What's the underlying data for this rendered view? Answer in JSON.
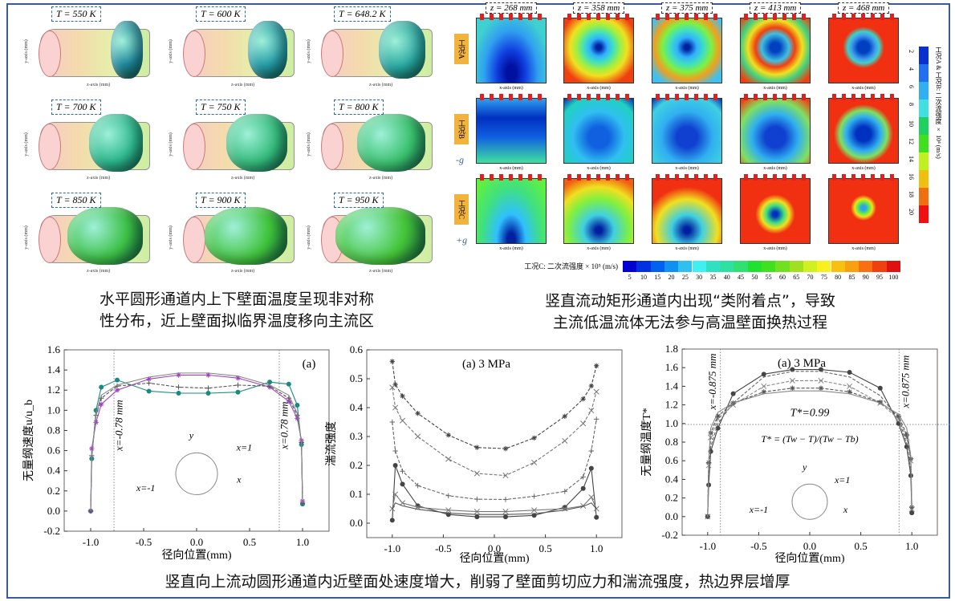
{
  "top_left": {
    "panels": [
      {
        "label": "T = 550 K",
        "blob_color": "#1f8a9e"
      },
      {
        "label": "T = 600 K",
        "blob_color": "#249aa6"
      },
      {
        "label": "T = 648.2 K",
        "blob_color": "#28a6a0"
      },
      {
        "label": "T = 700 K",
        "blob_color": "#2cb88c"
      },
      {
        "label": "T = 750 K",
        "blob_color": "#33ba7a"
      },
      {
        "label": "T = 800 K",
        "blob_color": "#38bf6c"
      },
      {
        "label": "T = 850 K",
        "blob_color": "#3cbf44"
      },
      {
        "label": "T = 900 K",
        "blob_color": "#40c23a"
      },
      {
        "label": "T = 950 K",
        "blob_color": "#44c436"
      }
    ],
    "axis_y": "y-axis (mm)",
    "axis_x": "x-axis (mm)",
    "axis_z": "z-axis (mm)",
    "caption_lines": [
      "水平圆形通道内上下壁面温度呈现非对称",
      "性分布，近上壁面拟临界温度移向主流区"
    ]
  },
  "top_right": {
    "z_labels": [
      "z = 268 mm",
      "z = 358 mm",
      "z = 375 mm",
      "z = 413 mm",
      "z = 468 mm"
    ],
    "cases": [
      "工况A",
      "工况B",
      "工况C"
    ],
    "g_signs": [
      "-g",
      "+g"
    ],
    "cell_xlabel": "x-axis (mm)",
    "cell_ylabel": "y-axis (mm)",
    "colorbar_ab": {
      "label": "工况A & 工况B: 二次流强度 × 10⁴ (m/s)",
      "ticks": [
        "2",
        "4",
        "6",
        "8",
        "10",
        "12",
        "14",
        "16",
        "18",
        "20"
      ]
    },
    "colorbar_c": {
      "label": "工况C: 二次流强度 × 10⁵ (m/s)",
      "ticks": [
        "5",
        "10",
        "15",
        "20",
        "25",
        "30",
        "35",
        "40",
        "45",
        "50",
        "55",
        "60",
        "65",
        "70",
        "75",
        "80",
        "85",
        "90",
        "95",
        "100"
      ]
    },
    "caption_lines": [
      "竖直流动矩形通道内出现“类附着点”，导致",
      "主流低温流体无法参与高温壁面换热过程"
    ]
  },
  "bottom_caption": "竖直向上流动圆形通道内近壁面处速度增大，削弱了壁面剪切应力和湍流强度，热边界层增厚",
  "chart_data": [
    {
      "type": "line",
      "title": "(a)",
      "xlabel": "径向位置(mm)",
      "ylabel": "无量纲速度u/u_b",
      "xlim": [
        -1.25,
        1.25
      ],
      "ylim": [
        -0.2,
        1.6
      ],
      "xticks": [
        -1.0,
        -0.5,
        0.0,
        0.5,
        1.0
      ],
      "yticks": [
        -0.2,
        0.0,
        0.2,
        0.4,
        0.6,
        0.8,
        1.0,
        1.2,
        1.4,
        1.6
      ],
      "vlines": [
        -0.78,
        0.78
      ],
      "annotations": [
        "x=-0.78 mm",
        "x=0.78 mm",
        "x=1",
        "x=-1",
        "x",
        "y"
      ],
      "x": [
        -1,
        -0.99,
        -0.95,
        -0.9,
        -0.75,
        -0.45,
        -0.17,
        0.11,
        0.39,
        0.69,
        0.87,
        0.95,
        0.99,
        1
      ],
      "series": [
        {
          "values": [
            0,
            0.52,
            1.0,
            1.23,
            1.3,
            1.19,
            1.17,
            1.17,
            1.18,
            1.28,
            1.26,
            1.05,
            0.66,
            0.07
          ],
          "color": "#1a8a80",
          "marker": "circle",
          "dash": false
        },
        {
          "values": [
            0,
            0.62,
            0.88,
            1.06,
            1.2,
            1.31,
            1.35,
            1.35,
            1.32,
            1.23,
            1.09,
            0.92,
            0.7,
            0.1
          ],
          "color": "#a040c0",
          "marker": "star",
          "dash": false
        },
        {
          "values": [
            0,
            0.55,
            0.95,
            1.12,
            1.24,
            1.27,
            1.23,
            1.22,
            1.25,
            1.24,
            1.12,
            0.95,
            0.68,
            0.08
          ],
          "color": "#555",
          "marker": "plus",
          "dash": true
        },
        {
          "values": [
            0,
            0.55,
            0.96,
            1.15,
            1.25,
            1.33,
            1.37,
            1.37,
            1.34,
            1.25,
            1.15,
            0.97,
            0.68,
            0.08
          ],
          "color": "#888",
          "marker": "none",
          "dash": false
        }
      ]
    },
    {
      "type": "line",
      "title": "(a) 3 MPa",
      "xlabel": "径向位置(mm)",
      "ylabel": "湍流强度",
      "xlim": [
        -1.25,
        1.25
      ],
      "ylim": [
        -0.05,
        0.6
      ],
      "xticks": [
        -1.0,
        -0.5,
        0.0,
        0.5,
        1.0
      ],
      "yticks": [
        0.0,
        0.1,
        0.2,
        0.3,
        0.4,
        0.5,
        0.6
      ],
      "vlines": [],
      "annotations": [],
      "x": [
        -1,
        -0.97,
        -0.9,
        -0.75,
        -0.45,
        -0.17,
        0.11,
        0.39,
        0.69,
        0.87,
        0.95,
        1
      ],
      "series": [
        {
          "values": [
            0.56,
            0.48,
            0.44,
            0.38,
            0.305,
            0.262,
            0.258,
            0.295,
            0.37,
            0.43,
            0.475,
            0.545
          ],
          "color": "#444",
          "marker": "star",
          "dash": true
        },
        {
          "values": [
            0.47,
            0.4,
            0.355,
            0.3,
            0.222,
            0.172,
            0.165,
            0.21,
            0.285,
            0.345,
            0.39,
            0.455
          ],
          "color": "#777",
          "marker": "cross",
          "dash": true
        },
        {
          "values": [
            0.35,
            0.25,
            0.18,
            0.13,
            0.095,
            0.083,
            0.082,
            0.093,
            0.11,
            0.16,
            0.25,
            0.36
          ],
          "color": "#666",
          "marker": "plus",
          "dash": true
        },
        {
          "values": [
            0.01,
            0.2,
            0.135,
            0.06,
            0.03,
            0.022,
            0.022,
            0.027,
            0.055,
            0.12,
            0.19,
            0.02
          ],
          "color": "#444",
          "marker": "circle",
          "dash": false
        },
        {
          "values": [
            0.05,
            0.1,
            0.07,
            0.055,
            0.045,
            0.04,
            0.04,
            0.045,
            0.05,
            0.06,
            0.09,
            0.05
          ],
          "color": "#777",
          "marker": "cross",
          "dash": false
        },
        {
          "values": [
            0.05,
            0.07,
            0.06,
            0.048,
            0.035,
            0.03,
            0.03,
            0.033,
            0.045,
            0.058,
            0.07,
            0.05
          ],
          "color": "#555",
          "marker": "none",
          "dash": false
        }
      ]
    },
    {
      "type": "line",
      "title": "(a) 3 MPa",
      "xlabel": "径向位置(mm)",
      "ylabel": "无量纲温度T*",
      "xlim": [
        -1.25,
        1.25
      ],
      "ylim": [
        -0.2,
        1.8
      ],
      "xticks": [
        -1.0,
        -0.5,
        0.0,
        0.5,
        1.0
      ],
      "yticks": [
        -0.2,
        0.0,
        0.2,
        0.4,
        0.6,
        0.8,
        1.0,
        1.2,
        1.4,
        1.6,
        1.8
      ],
      "vlines": [
        -0.875,
        0.875
      ],
      "hlines": [
        0.99
      ],
      "annotations": [
        "x=-0.875 mm",
        "x=0.875 mm",
        "T*=0.99",
        "T* = (Tw − T)/(Tw − Tb)",
        "x=1",
        "x=-1",
        "x",
        "y"
      ],
      "x": [
        -1,
        -0.99,
        -0.97,
        -0.9,
        -0.75,
        -0.45,
        -0.17,
        0.11,
        0.39,
        0.69,
        0.87,
        0.95,
        0.99,
        1
      ],
      "series": [
        {
          "values": [
            0,
            0.34,
            0.7,
            0.95,
            1.32,
            1.53,
            1.58,
            1.58,
            1.55,
            1.38,
            1.0,
            0.75,
            0.44,
            0.04
          ],
          "color": "#444",
          "marker": "circle",
          "dash": false
        },
        {
          "values": [
            0,
            0.45,
            0.75,
            1.0,
            1.22,
            1.5,
            1.56,
            1.56,
            1.5,
            1.3,
            1.05,
            0.78,
            0.5,
            0.06
          ],
          "color": "#666",
          "marker": "none",
          "dash": true
        },
        {
          "values": [
            0,
            0.55,
            0.85,
            1.05,
            1.2,
            1.4,
            1.46,
            1.46,
            1.4,
            1.22,
            1.05,
            0.85,
            0.6,
            0.08
          ],
          "color": "#888",
          "marker": "cross",
          "dash": true
        },
        {
          "values": [
            0,
            0.58,
            0.9,
            1.08,
            1.22,
            1.34,
            1.38,
            1.38,
            1.34,
            1.23,
            1.08,
            0.88,
            0.62,
            0.1
          ],
          "color": "#555",
          "marker": "star",
          "dash": true
        },
        {
          "values": [
            0,
            0.6,
            0.95,
            1.12,
            1.22,
            1.32,
            1.35,
            1.35,
            1.32,
            1.22,
            1.1,
            0.95,
            0.65,
            0.1
          ],
          "color": "#888",
          "marker": "none",
          "dash": false
        }
      ]
    }
  ]
}
